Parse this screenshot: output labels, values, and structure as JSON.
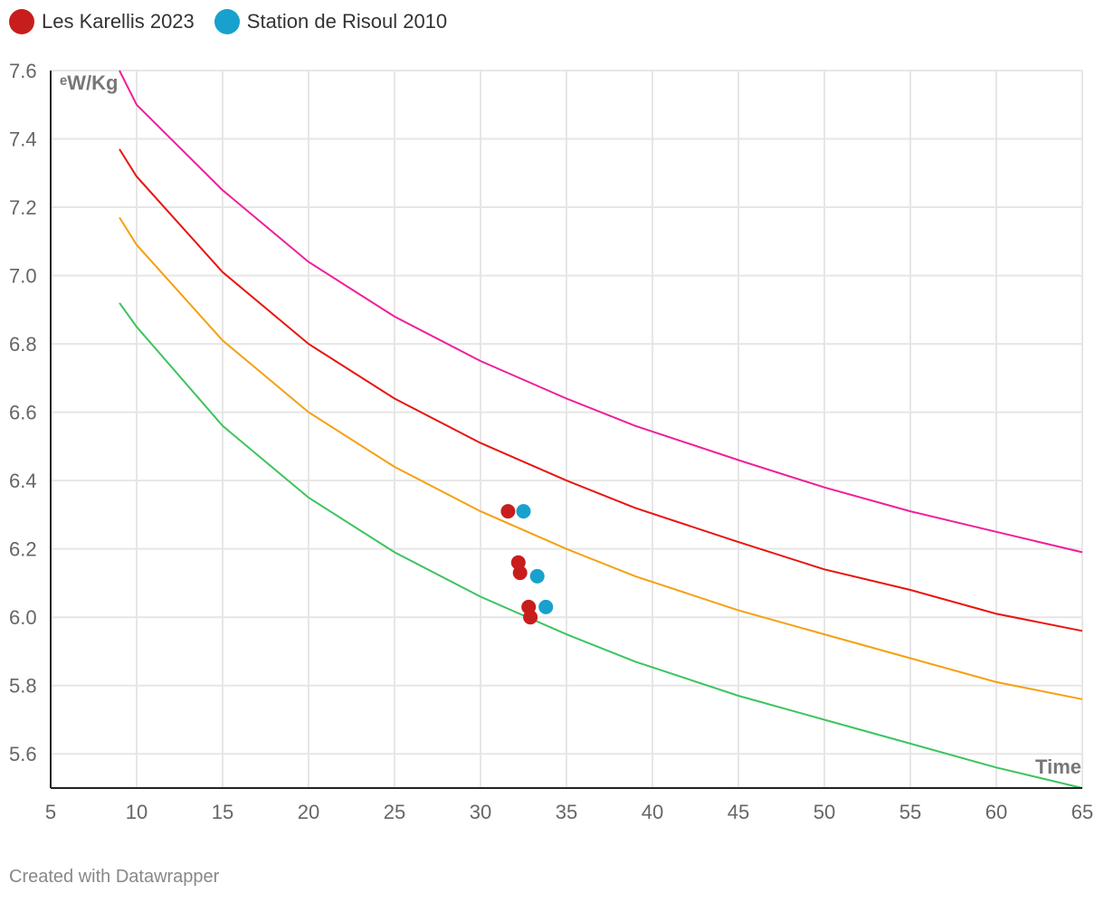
{
  "chart_data": {
    "type": "scatter",
    "title": "",
    "xlabel": "Time",
    "ylabel": "ᵉW/Kg",
    "xlim": [
      5,
      65
    ],
    "ylim": [
      5.5,
      7.6
    ],
    "x_ticks": [
      5,
      10,
      15,
      20,
      25,
      30,
      35,
      40,
      45,
      50,
      55,
      60,
      65
    ],
    "y_ticks": [
      5.6,
      5.8,
      6.0,
      6.2,
      6.4,
      6.6,
      6.8,
      7.0,
      7.2,
      7.4,
      7.6
    ],
    "grid": true,
    "legend": [
      {
        "name": "Les Karellis 2023",
        "color": "#c71e1d"
      },
      {
        "name": "Station de Risoul 2010",
        "color": "#18a1cd"
      }
    ],
    "series": [
      {
        "name": "Les Karellis 2023",
        "color": "#c71e1d",
        "x": [
          31.6,
          32.2,
          32.3,
          32.8,
          32.9
        ],
        "y": [
          6.31,
          6.16,
          6.13,
          6.03,
          6.0
        ]
      },
      {
        "name": "Station de Risoul 2010",
        "color": "#18a1cd",
        "x": [
          32.5,
          33.3,
          33.8
        ],
        "y": [
          6.31,
          6.12,
          6.03
        ]
      }
    ],
    "reference_lines": [
      {
        "name": "curve-magenta",
        "color": "#f01e9b",
        "x": [
          9,
          10,
          15,
          20,
          25,
          30,
          35,
          39,
          45,
          50,
          55,
          60,
          65
        ],
        "y": [
          7.6,
          7.5,
          7.25,
          7.04,
          6.88,
          6.75,
          6.64,
          6.56,
          6.46,
          6.38,
          6.31,
          6.25,
          6.19
        ]
      },
      {
        "name": "curve-red",
        "color": "#e8140e",
        "x": [
          9,
          10,
          15,
          20,
          25,
          30,
          35,
          39,
          45,
          50,
          55,
          60,
          65
        ],
        "y": [
          7.37,
          7.29,
          7.01,
          6.8,
          6.64,
          6.51,
          6.4,
          6.32,
          6.22,
          6.14,
          6.08,
          6.01,
          5.96
        ]
      },
      {
        "name": "curve-orange",
        "color": "#f5a00f",
        "x": [
          9,
          10,
          15,
          20,
          25,
          30,
          35,
          39,
          45,
          50,
          55,
          60,
          65
        ],
        "y": [
          7.17,
          7.09,
          6.81,
          6.6,
          6.44,
          6.31,
          6.2,
          6.12,
          6.02,
          5.95,
          5.88,
          5.81,
          5.76
        ]
      },
      {
        "name": "curve-green",
        "color": "#3cc45e",
        "x": [
          9,
          10,
          15,
          20,
          25,
          30,
          35,
          39,
          45,
          50,
          55,
          60,
          65
        ],
        "y": [
          6.92,
          6.85,
          6.56,
          6.35,
          6.19,
          6.06,
          5.95,
          5.87,
          5.77,
          5.7,
          5.63,
          5.56,
          5.5
        ]
      }
    ]
  },
  "footer": "Created with Datawrapper"
}
